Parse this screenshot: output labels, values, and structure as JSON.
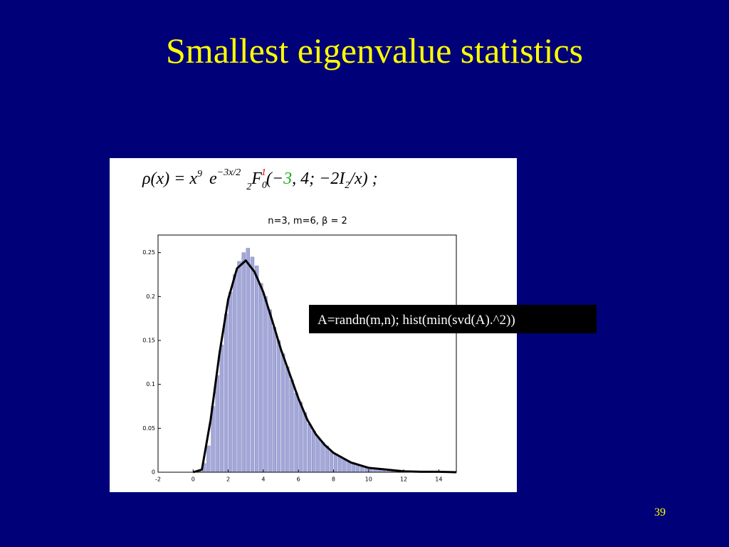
{
  "slide": {
    "title": "Smallest eigenvalue statistics",
    "code": "A=randn(m,n);  hist(min(svd(A).^2))",
    "page_number": "39",
    "formula": {
      "lhs": "ρ(x) = x",
      "exp9": "9",
      "e": "e",
      "exp": "−3x/2",
      "sub2": "2",
      "F": "F",
      "sub0": "0",
      "sup1": "1",
      "open": "(−",
      "three": "3",
      "rest": ", 4; −2",
      "I": "I",
      "subI": "2",
      "close": "/x)  ;"
    }
  },
  "chart_data": {
    "type": "histogram",
    "title": "n=3, m=6, β = 2",
    "bins": [
      0,
      0.25,
      0.5,
      0.75,
      1,
      1.25,
      1.5,
      1.75,
      2,
      2.25,
      2.5,
      2.75,
      3,
      3.25,
      3.5,
      3.75,
      4,
      4.25,
      4.5,
      4.75,
      5,
      5.25,
      5.5,
      5.75,
      6,
      6.25,
      6.5,
      6.75,
      7,
      7.25,
      7.5,
      7.75,
      8,
      8.25,
      8.5,
      8.75,
      9,
      9.25,
      9.5,
      9.75,
      10,
      10.25,
      10.5,
      10.75,
      11,
      11.25,
      11.5,
      11.75,
      12,
      12.25,
      12.5,
      12.75,
      13,
      13.25,
      13.5,
      13.75,
      14
    ],
    "values": [
      0,
      0.001,
      0.01,
      0.03,
      0.075,
      0.11,
      0.145,
      0.18,
      0.205,
      0.225,
      0.24,
      0.25,
      0.255,
      0.245,
      0.235,
      0.215,
      0.2,
      0.185,
      0.165,
      0.15,
      0.135,
      0.12,
      0.105,
      0.09,
      0.08,
      0.068,
      0.055,
      0.047,
      0.04,
      0.034,
      0.03,
      0.024,
      0.021,
      0.018,
      0.015,
      0.012,
      0.011,
      0.009,
      0.008,
      0.006,
      0.005,
      0.004,
      0.004,
      0.003,
      0.003,
      0.002,
      0.002,
      0.002,
      0.001,
      0.001,
      0.001,
      0.001,
      0.001,
      0.0005,
      0.0005,
      0.0005
    ],
    "color": "#a4a8d8",
    "curve": {
      "color": "#000000",
      "x": [
        0,
        0.5,
        1,
        1.5,
        2,
        2.5,
        3,
        3.5,
        4,
        4.5,
        5,
        5.5,
        6,
        6.5,
        7,
        7.5,
        8,
        9,
        10,
        11,
        12,
        13,
        14,
        15
      ],
      "values": [
        0,
        0.003,
        0.06,
        0.135,
        0.197,
        0.232,
        0.241,
        0.228,
        0.205,
        0.173,
        0.14,
        0.112,
        0.084,
        0.06,
        0.043,
        0.031,
        0.022,
        0.011,
        0.005,
        0.003,
        0.001,
        0.0005,
        0.0005,
        0
      ]
    },
    "xlim": [
      -2,
      15
    ],
    "xticks": [
      -2,
      0,
      2,
      4,
      6,
      8,
      10,
      12,
      14
    ],
    "ylim": [
      0,
      0.27
    ],
    "yticks": [
      0,
      0.05,
      0.1,
      0.15,
      0.2,
      0.25
    ]
  }
}
